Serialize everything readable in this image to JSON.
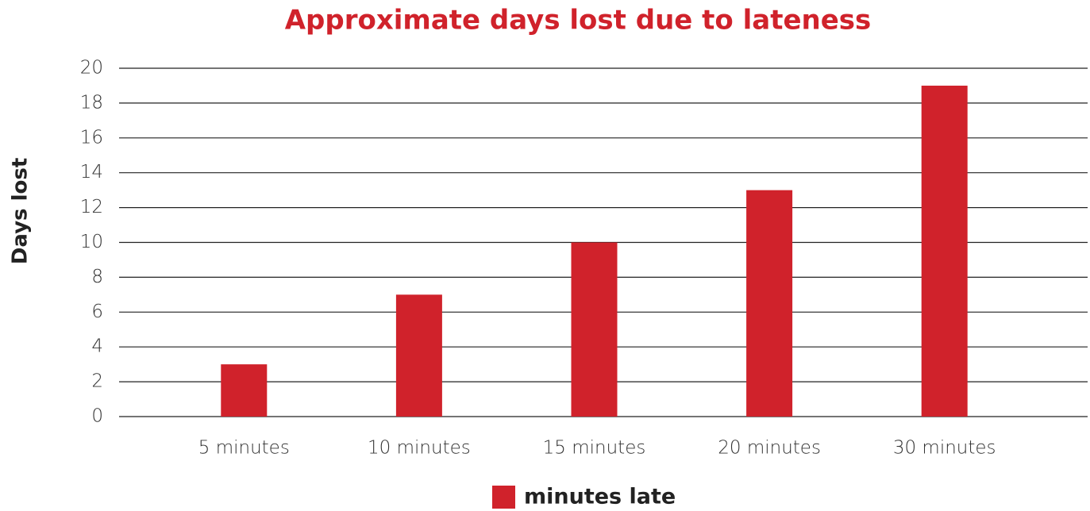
{
  "chart_data": {
    "type": "bar",
    "title": "Approximate days lost due to lateness",
    "y_label": "Days lost",
    "categories": [
      "5 minutes",
      "10 minutes",
      "15 minutes",
      "20 minutes",
      "30 minutes"
    ],
    "series": [
      {
        "name": "minutes late",
        "color": "#d0222b",
        "values": [
          3,
          7,
          10,
          13,
          19
        ]
      }
    ],
    "ylim": [
      0,
      20
    ],
    "yticks": [
      0,
      2,
      4,
      6,
      8,
      10,
      12,
      14,
      16,
      18,
      20
    ],
    "grid": true,
    "legend": "bottom"
  }
}
